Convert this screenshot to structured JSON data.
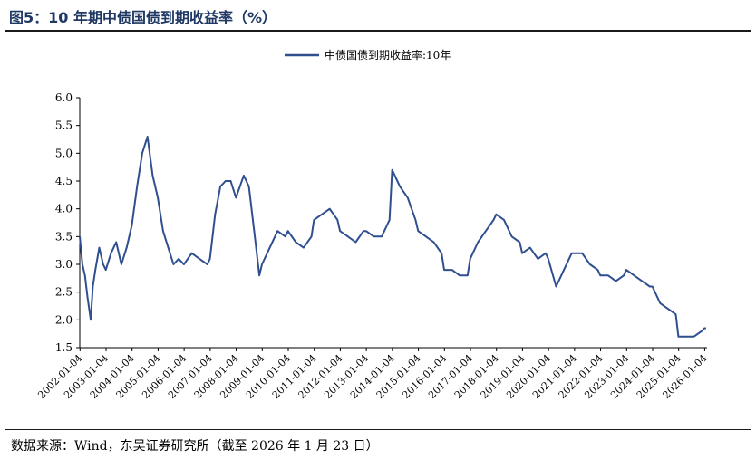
{
  "header": {
    "title": "图5：10 年期中债国债到期收益率（%）"
  },
  "footer": {
    "source": "数据来源：Wind，东吴证券研究所（截至 2026 年 1 月 23 日）"
  },
  "chart_data": {
    "type": "line",
    "title": "",
    "xlabel": "",
    "ylabel": "",
    "ylim": [
      1.5,
      6.0
    ],
    "yticks": [
      "6.0",
      "5.5",
      "5.0",
      "4.5",
      "4.0",
      "3.5",
      "3.0",
      "2.5",
      "2.0",
      "1.5"
    ],
    "xticks": [
      "2002-01-04",
      "2003-01-04",
      "2004-01-04",
      "2005-01-04",
      "2006-01-04",
      "2007-01-04",
      "2008-01-04",
      "2009-01-04",
      "2010-01-04",
      "2011-01-04",
      "2012-01-04",
      "2013-01-04",
      "2014-01-04",
      "2015-01-04",
      "2016-01-04",
      "2017-01-04",
      "2018-01-04",
      "2019-01-04",
      "2020-01-04",
      "2021-01-04",
      "2022-01-04",
      "2023-01-04",
      "2024-01-04",
      "2025-01-04",
      "2026-01-04"
    ],
    "legend": "top-center",
    "grid": false,
    "line_color": "#2f4f8f",
    "series": [
      {
        "name": "中债国债到期收益率:10年",
        "x": [
          2002.0,
          2002.1,
          2002.2,
          2002.3,
          2002.42,
          2002.5,
          2002.6,
          2002.75,
          2002.9,
          2003.0,
          2003.2,
          2003.4,
          2003.6,
          2003.8,
          2004.0,
          2004.2,
          2004.4,
          2004.6,
          2004.8,
          2005.0,
          2005.2,
          2005.4,
          2005.6,
          2005.8,
          2006.0,
          2006.3,
          2006.6,
          2006.9,
          2007.0,
          2007.2,
          2007.4,
          2007.6,
          2007.8,
          2008.0,
          2008.3,
          2008.5,
          2008.7,
          2008.9,
          2009.0,
          2009.3,
          2009.6,
          2009.9,
          2010.0,
          2010.3,
          2010.6,
          2010.9,
          2011.0,
          2011.3,
          2011.6,
          2011.9,
          2012.0,
          2012.3,
          2012.6,
          2012.9,
          2013.0,
          2013.3,
          2013.6,
          2013.9,
          2014.0,
          2014.3,
          2014.6,
          2014.9,
          2015.0,
          2015.3,
          2015.6,
          2015.9,
          2016.0,
          2016.3,
          2016.6,
          2016.9,
          2017.0,
          2017.3,
          2017.6,
          2017.9,
          2018.0,
          2018.3,
          2018.6,
          2018.9,
          2019.0,
          2019.3,
          2019.6,
          2019.9,
          2020.0,
          2020.3,
          2020.6,
          2020.9,
          2021.0,
          2021.3,
          2021.6,
          2021.9,
          2022.0,
          2022.3,
          2022.6,
          2022.9,
          2023.0,
          2023.3,
          2023.6,
          2023.9,
          2024.0,
          2024.3,
          2024.6,
          2024.9,
          2025.0,
          2025.3,
          2025.6,
          2025.9,
          2026.0,
          2026.06
        ],
        "values": [
          3.5,
          3.0,
          2.8,
          2.4,
          2.0,
          2.6,
          2.9,
          3.3,
          3.0,
          2.9,
          3.2,
          3.4,
          3.0,
          3.3,
          3.7,
          4.4,
          5.0,
          5.3,
          4.6,
          4.2,
          3.6,
          3.3,
          3.0,
          3.1,
          3.0,
          3.2,
          3.1,
          3.0,
          3.1,
          3.9,
          4.4,
          4.5,
          4.5,
          4.2,
          4.6,
          4.4,
          3.6,
          2.8,
          3.0,
          3.3,
          3.6,
          3.5,
          3.6,
          3.4,
          3.3,
          3.5,
          3.8,
          3.9,
          4.0,
          3.8,
          3.6,
          3.5,
          3.4,
          3.6,
          3.6,
          3.5,
          3.5,
          3.8,
          4.7,
          4.4,
          4.2,
          3.8,
          3.6,
          3.5,
          3.4,
          3.2,
          2.9,
          2.9,
          2.8,
          2.8,
          3.1,
          3.4,
          3.6,
          3.8,
          3.9,
          3.8,
          3.5,
          3.4,
          3.2,
          3.3,
          3.1,
          3.2,
          3.1,
          2.6,
          2.9,
          3.2,
          3.2,
          3.2,
          3.0,
          2.9,
          2.8,
          2.8,
          2.7,
          2.8,
          2.9,
          2.8,
          2.7,
          2.6,
          2.6,
          2.3,
          2.2,
          2.1,
          1.7,
          1.7,
          1.7,
          1.8,
          1.85,
          1.85
        ]
      }
    ]
  }
}
